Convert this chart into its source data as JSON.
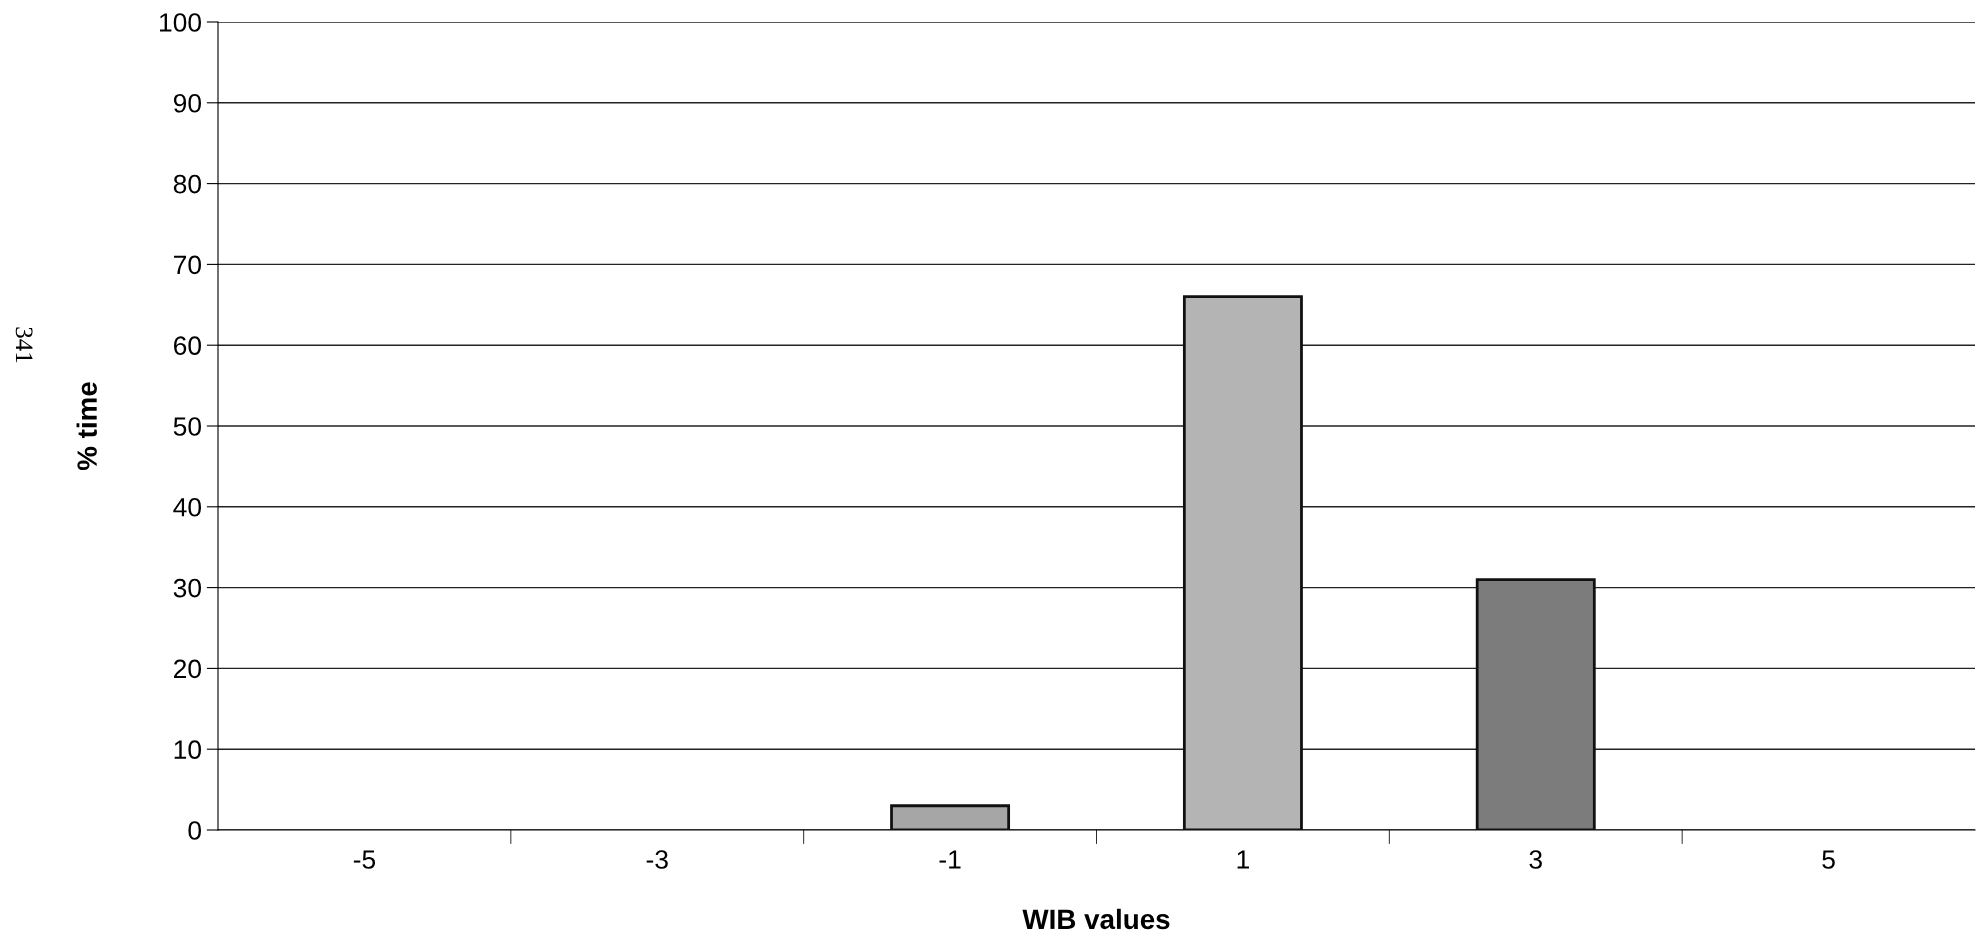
{
  "chart_data": {
    "type": "bar",
    "xlabel": "WIB values",
    "ylabel": "% time",
    "categories": [
      "-5",
      "-3",
      "-1",
      "1",
      "3",
      "5"
    ],
    "values": [
      0,
      0,
      3,
      66,
      31,
      0
    ],
    "colors": [
      "#a6a6a6",
      "#a6a6a6",
      "#a6a6a6",
      "#b4b4b4",
      "#7c7c7c",
      "#a6a6a6"
    ],
    "ylim": [
      0,
      100
    ],
    "yticks": [
      0,
      10,
      20,
      30,
      40,
      50,
      60,
      70,
      80,
      90,
      100
    ],
    "grid": "y",
    "annotations": [
      "341"
    ]
  }
}
